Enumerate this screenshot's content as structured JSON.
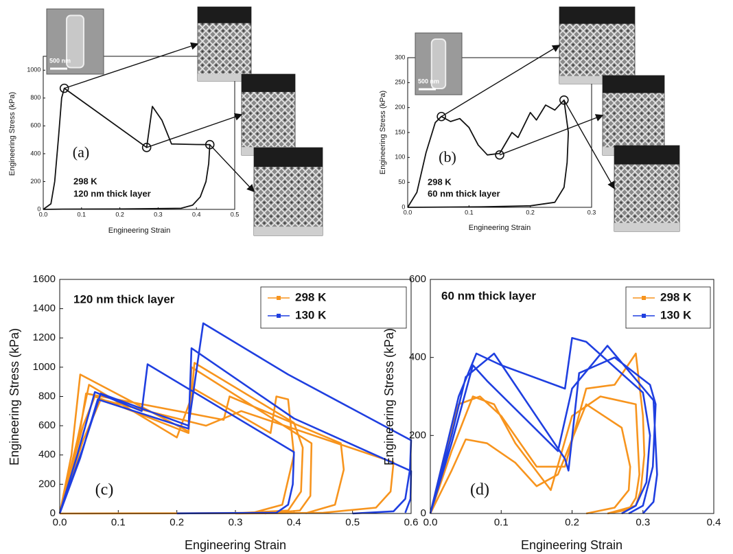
{
  "chart_data": [
    {
      "type": "line",
      "panel_label": "(a)",
      "annotations": [
        "298 K",
        "120 nm thick layer"
      ],
      "scale_bar_label": "500 nm",
      "x_label": "Engineering Strain",
      "y_label": "Engineering Stress (kPa)",
      "xlim": [
        0,
        0.5
      ],
      "ylim": [
        0,
        1100
      ],
      "xticks": [
        {
          "value": 0,
          "label": "0.0"
        },
        0.1,
        0.2,
        0.3,
        0.4,
        0.5
      ],
      "yticks": [
        0,
        200,
        400,
        600,
        800,
        1000
      ],
      "series": [
        {
          "color": "#111111",
          "x": [
            0,
            0.02,
            0.03,
            0.04,
            0.048,
            0.055,
            0.27,
            0.285,
            0.31,
            0.335,
            0.37,
            0.4,
            0.435,
            0.432,
            0.425,
            0.41,
            0.39,
            0.36,
            0.2,
            0.05,
            0
          ],
          "values": [
            0,
            40,
            200,
            520,
            800,
            870,
            445,
            740,
            640,
            470,
            468,
            466,
            465,
            330,
            200,
            90,
            30,
            8,
            3,
            2,
            0
          ]
        }
      ],
      "circled": {
        "x": [
          0.055,
          0.27,
          0.435
        ],
        "y": [
          870,
          445,
          465
        ]
      }
    },
    {
      "type": "line",
      "panel_label": "(b)",
      "annotations": [
        "298 K",
        "60 nm thick layer"
      ],
      "scale_bar_label": "500 nm",
      "x_label": "Engineering Strain",
      "y_label": "Engineering Stress (kPa)",
      "xlim": [
        0,
        0.3
      ],
      "ylim": [
        0,
        300
      ],
      "xticks": [
        {
          "value": 0,
          "label": "0.0"
        },
        0.1,
        0.2,
        0.3
      ],
      "yticks": [
        0,
        50,
        100,
        150,
        200,
        250,
        300
      ],
      "series": [
        {
          "color": "#111111",
          "x": [
            0,
            0.015,
            0.03,
            0.045,
            0.055,
            0.07,
            0.085,
            0.1,
            0.115,
            0.13,
            0.15,
            0.17,
            0.18,
            0.2,
            0.21,
            0.225,
            0.24,
            0.255,
            0.262,
            0.26,
            0.255,
            0.24,
            0.2,
            0.12,
            0
          ],
          "values": [
            0,
            30,
            110,
            170,
            182,
            172,
            178,
            160,
            125,
            105,
            108,
            150,
            140,
            190,
            175,
            205,
            195,
            215,
            150,
            90,
            40,
            10,
            3,
            1,
            0
          ]
        }
      ],
      "circled": {
        "x": [
          0.055,
          0.15,
          0.255
        ],
        "y": [
          182,
          105,
          215
        ]
      }
    },
    {
      "type": "line",
      "panel_label": "(c)",
      "annotations": [
        "120 nm thick layer"
      ],
      "x_label": "Engineering Strain",
      "y_label": "Engineering Stress (kPa)",
      "xlim": [
        0,
        0.6
      ],
      "ylim": [
        0,
        1600
      ],
      "xticks": [
        {
          "value": 0,
          "label": "0.0"
        },
        0.1,
        0.2,
        0.3,
        0.4,
        0.5,
        0.6
      ],
      "yticks": [
        0,
        200,
        400,
        600,
        800,
        1000,
        1200,
        1400,
        1600
      ],
      "legend": "upper right",
      "series": [
        {
          "name": "298 K",
          "color": "#f7941d",
          "x": [
            0,
            0.02,
            0.035,
            0.22,
            0.23,
            0.4,
            0.415,
            0.412,
            0.39,
            0.3,
            0.1,
            0,
            null,
            0,
            0.03,
            0.05,
            0.2,
            0.23,
            0.36,
            0.37,
            0.39,
            0.4,
            0.38,
            0.33,
            0.2,
            null,
            0,
            0.04,
            0.06,
            0.22,
            0.225,
            0.43,
            0.428,
            0.41,
            0.35,
            null,
            0,
            0.03,
            0.045,
            0.28,
            0.29,
            0.48,
            0.485,
            0.47,
            0.42,
            null,
            0,
            0.04,
            0.07,
            0.25,
            0.31,
            0.57,
            0.565,
            0.54,
            0.45,
            0.3
          ],
          "values": [
            0,
            400,
            950,
            560,
            1030,
            620,
            450,
            150,
            20,
            2,
            1,
            0,
            null,
            0,
            500,
            880,
            520,
            850,
            550,
            800,
            780,
            400,
            60,
            5,
            1,
            null,
            0,
            600,
            800,
            550,
            1000,
            480,
            120,
            20,
            0,
            null,
            0,
            450,
            820,
            640,
            800,
            480,
            300,
            60,
            2,
            null,
            0,
            500,
            780,
            600,
            700,
            350,
            150,
            40,
            5,
            0
          ]
        },
        {
          "name": "130 K",
          "color": "#1f3fe0",
          "x": [
            0,
            0.03,
            0.06,
            0.14,
            0.15,
            0.4,
            0.398,
            0.39,
            0.37,
            0.2,
            null,
            0,
            0.04,
            0.07,
            0.22,
            0.245,
            0.39,
            0.6,
            0.598,
            0.59,
            0.57,
            0.5,
            null,
            0,
            0.035,
            0.065,
            0.22,
            0.225,
            0.4,
            0.6,
            0.599,
            0.59
          ],
          "values": [
            0,
            400,
            830,
            700,
            1020,
            420,
            200,
            60,
            5,
            1,
            null,
            0,
            450,
            820,
            600,
            1300,
            950,
            500,
            300,
            100,
            15,
            0,
            null,
            0,
            380,
            780,
            580,
            1130,
            650,
            290,
            100,
            5
          ]
        }
      ]
    },
    {
      "type": "line",
      "panel_label": "(d)",
      "annotations": [
        "60 nm thick layer"
      ],
      "x_label": "Engineering Strain",
      "y_label": "Engineering Stress (kPa)",
      "xlim": [
        0,
        0.4
      ],
      "ylim": [
        0,
        600
      ],
      "xticks": [
        {
          "value": 0,
          "label": "0.0"
        },
        0.1,
        0.2,
        0.3,
        0.4
      ],
      "yticks": [
        0,
        200,
        400,
        600
      ],
      "legend": "upper right",
      "series": [
        {
          "name": "298 K",
          "color": "#f7941d",
          "x": [
            0,
            0.02,
            0.04,
            0.07,
            0.1,
            0.15,
            0.19,
            0.22,
            0.26,
            0.29,
            0.3,
            0.302,
            0.297,
            0.29,
            0.25,
            null,
            0,
            0.03,
            0.05,
            0.08,
            0.12,
            0.15,
            0.18,
            0.22,
            0.27,
            0.282,
            0.28,
            0.26,
            0.22,
            null,
            0,
            0.03,
            0.06,
            0.09,
            0.12,
            0.17,
            0.2,
            0.24,
            0.29,
            0.295,
            0.29,
            0.28,
            0.25
          ],
          "values": [
            0,
            150,
            280,
            300,
            250,
            120,
            120,
            320,
            330,
            410,
            250,
            150,
            60,
            20,
            0,
            null,
            0,
            110,
            190,
            180,
            130,
            70,
            100,
            280,
            220,
            120,
            60,
            15,
            0,
            null,
            0,
            160,
            300,
            280,
            180,
            60,
            250,
            300,
            280,
            100,
            40,
            10,
            0
          ]
        },
        {
          "name": "130 K",
          "color": "#1f3fe0",
          "x": [
            0,
            0.02,
            0.04,
            0.065,
            0.1,
            0.19,
            0.2,
            0.22,
            0.3,
            0.31,
            0.305,
            0.29,
            0.27,
            null,
            0,
            0.03,
            0.05,
            0.09,
            0.19,
            0.195,
            0.21,
            0.26,
            0.31,
            0.318,
            0.314,
            0.3,
            0.28,
            null,
            0,
            0.03,
            0.06,
            0.08,
            0.18,
            0.2,
            0.25,
            0.315,
            0.32,
            0.315,
            0.3
          ],
          "values": [
            0,
            150,
            300,
            410,
            380,
            320,
            450,
            440,
            310,
            200,
            80,
            20,
            0,
            null,
            0,
            200,
            350,
            410,
            140,
            110,
            360,
            400,
            330,
            280,
            120,
            20,
            0,
            null,
            0,
            180,
            380,
            340,
            160,
            320,
            430,
            290,
            100,
            30,
            0
          ]
        }
      ]
    }
  ]
}
